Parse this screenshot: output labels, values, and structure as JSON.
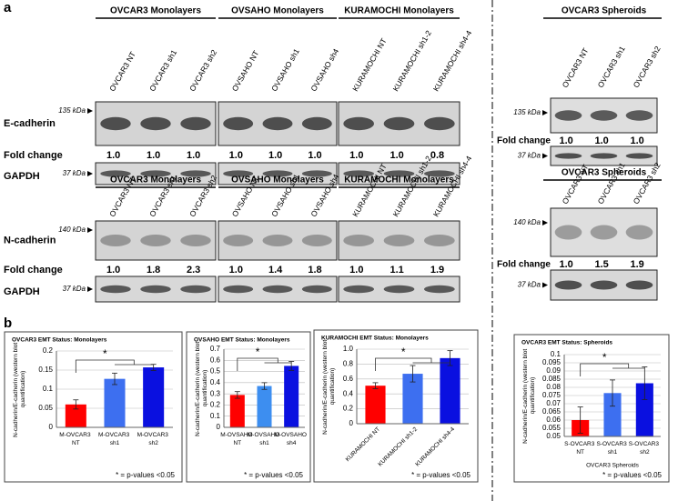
{
  "panel_labels": {
    "a": "a",
    "b": "b"
  },
  "blot_blocks": [
    {
      "protein": "E-cadherin",
      "kda": "135 kDa",
      "fold_label": "Fold change",
      "gapdh": "GAPDH",
      "gapdh_kda": "37 kDa",
      "groups": [
        {
          "title": "OVCAR3 Monolayers",
          "samples": [
            "OVCAR3 NT",
            "OVCAR3 sh1",
            "OVCAR3 sh2"
          ],
          "colors": [
            "#e02020",
            "#1a1ab0",
            "#4a86e8"
          ],
          "fold": [
            "1.0",
            "1.0",
            "1.0"
          ]
        },
        {
          "title": "OVSAHO Monolayers",
          "samples": [
            "OVSAHO NT",
            "OVSAHO sh1",
            "OVSAHO sh4"
          ],
          "colors": [
            "#e02020",
            "#4a86e8",
            "#1a1ab0"
          ],
          "fold": [
            "1.0",
            "1.0",
            "1.0"
          ]
        },
        {
          "title": "KURAMOCHI Monolayers",
          "samples": [
            "KURAMOCHI NT",
            "KURAMOCHI sh1-2",
            "KURAMOCHI sh4-4"
          ],
          "colors": [
            "#e02020",
            "#4a86e8",
            "#1a1ab0"
          ],
          "fold": [
            "1.0",
            "1.0",
            "0.8"
          ]
        }
      ],
      "spheroid": {
        "title": "OVCAR3 Spheroids",
        "samples": [
          "OVCAR3 NT",
          "OVCAR3 sh1",
          "OVCAR3 sh2"
        ],
        "colors": [
          "#e02020",
          "#1a1ab0",
          "#4a86e8"
        ],
        "kda": "135 kDa",
        "fold_label": "Fold change",
        "fold": [
          "1.0",
          "1.0",
          "1.0"
        ],
        "gapdh_kda": "37 kDa"
      }
    },
    {
      "protein": "N-cadherin",
      "kda": "140 kDa",
      "fold_label": "Fold change",
      "gapdh": "GAPDH",
      "gapdh_kda": "37 kDa",
      "groups": [
        {
          "title": "OVCAR3 Monolayers",
          "samples": [
            "OVCAR3 NT",
            "OVCAR3 sh1",
            "OVCAR3 sh2"
          ],
          "colors": [
            "#e02020",
            "#1a1ab0",
            "#4a86e8"
          ],
          "fold": [
            "1.0",
            "1.8",
            "2.3"
          ]
        },
        {
          "title": "OVSAHO Monolayers",
          "samples": [
            "OVSAHO NT",
            "OVSAHO sh1",
            "OVSAHO sh4"
          ],
          "colors": [
            "#e02020",
            "#4a86e8",
            "#1a1ab0"
          ],
          "fold": [
            "1.0",
            "1.4",
            "1.8"
          ]
        },
        {
          "title": "KURAMOCHI Monolayers",
          "samples": [
            "KURAMOCHI NT",
            "KURAMOCHI sh1-2",
            "KURAMOCHI sh4-4"
          ],
          "colors": [
            "#e02020",
            "#4a86e8",
            "#1a1ab0"
          ],
          "fold": [
            "1.0",
            "1.1",
            "1.9"
          ]
        }
      ],
      "spheroid": {
        "title": "OVCAR3 Spheroids",
        "samples": [
          "OVCAR3 NT",
          "OVCAR3 sh1",
          "OVCAR3 sh2"
        ],
        "colors": [
          "#e02020",
          "#1a1ab0",
          "#4a86e8"
        ],
        "kda": "140 kDa",
        "fold_label": "Fold change",
        "fold": [
          "1.0",
          "1.5",
          "1.9"
        ],
        "gapdh_kda": "37 kDa"
      }
    }
  ],
  "chart_data": [
    {
      "type": "bar",
      "title": "OVCAR3 EMT Status: Monolayers",
      "categories": [
        "M-OVCAR3 NT",
        "M-OVCAR3 sh1",
        "M-OVCAR3 sh2"
      ],
      "values": [
        0.06,
        0.127,
        0.157
      ],
      "errors": [
        0.012,
        0.015,
        0.008
      ],
      "colors": [
        "#ff0000",
        "#3d6ff0",
        "#0a10e0"
      ],
      "ylim": [
        0,
        0.2
      ],
      "yticks": [
        0,
        0.05,
        0.1,
        0.15,
        0.2
      ],
      "grid": true,
      "y_label": "N-cadherin/E-cadherin (western blot quantification)",
      "annotation": "*",
      "footnote": "* = p-values <0.05"
    },
    {
      "type": "bar",
      "title": "OVSAHO EMT Status: Monolayers",
      "categories": [
        "M-OVSAHO NT",
        "M-OVSAHO sh1",
        "M-OVSAHO sh4"
      ],
      "values": [
        0.29,
        0.37,
        0.55
      ],
      "errors": [
        0.03,
        0.03,
        0.04
      ],
      "colors": [
        "#ff0000",
        "#3d8ef0",
        "#0a10e0"
      ],
      "ylim": [
        0,
        0.7
      ],
      "yticks": [
        0,
        0.1,
        0.2,
        0.3,
        0.4,
        0.5,
        0.6,
        0.7
      ],
      "grid": true,
      "y_label": "N-cadherin/E-cadherin (western blot quantification)",
      "annotation": "*",
      "footnote": "* = p-values <0.05"
    },
    {
      "type": "bar",
      "title": "KURAMOCHI EMT Status: Monolayers",
      "categories": [
        "KURAMOCHI NT",
        "KURAMOCHI sh1-2",
        "KURAMOCHI sh4-4"
      ],
      "values": [
        0.51,
        0.67,
        0.88
      ],
      "errors": [
        0.04,
        0.11,
        0.1
      ],
      "colors": [
        "#ff0000",
        "#3d6ff0",
        "#0a10e0"
      ],
      "ylim": [
        0,
        1
      ],
      "yticks": [
        0,
        0.2,
        0.4,
        0.6,
        0.8,
        {
          "value": 1,
          "label": "1.0"
        }
      ],
      "grid": true,
      "rotate_labels": true,
      "y_label": "N-cadherin/E-cadherin (western blot quantification)",
      "annotation": "*",
      "footnote": "* = p-values <0.05"
    },
    {
      "type": "bar",
      "title": "OVCAR3 EMT Status: Spheroids",
      "categories": [
        "S-OVCAR3 NT",
        "S-OVCAR3 sh1",
        "S-OVCAR3 sh2"
      ],
      "values": [
        0.06,
        0.0765,
        0.0825
      ],
      "errors": [
        0.008,
        0.008,
        0.01
      ],
      "colors": [
        "#ff0000",
        "#3d6ff0",
        "#0a10e0"
      ],
      "ylim": [
        0.05,
        0.1
      ],
      "yticks": [
        0.05,
        0.055,
        0.06,
        0.065,
        0.07,
        0.075,
        0.08,
        0.085,
        0.09,
        0.095,
        0.1
      ],
      "grid": true,
      "y_label": "N-cadherin/E-cadherin (western blot quantification)",
      "x_label": "OVCAR3 Spheroids",
      "annotation": "*",
      "footnote": "* = p-values <0.05"
    }
  ]
}
